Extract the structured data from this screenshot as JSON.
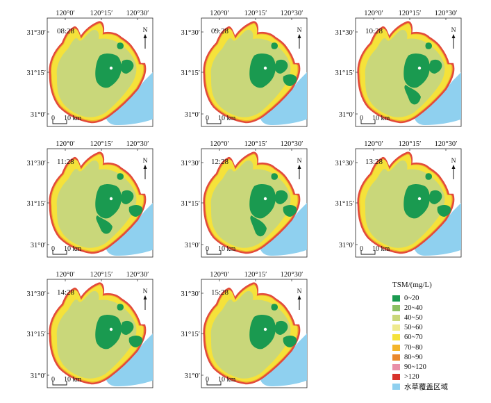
{
  "panels": [
    {
      "time": "08:28",
      "lon_labels": [
        "120°0′",
        "120°15′",
        "120°30′"
      ],
      "lat_labels": [
        "31°30′",
        "31°15′",
        "31°0′"
      ],
      "scale_label": "10 km",
      "scale_zero": "0",
      "north": "N"
    },
    {
      "time": "09:28",
      "lon_labels": [
        "120°0′",
        "120°15′",
        "120°30′"
      ],
      "lat_labels": [
        "31°30′",
        "31°15′",
        "31°0′"
      ],
      "scale_label": "10 km",
      "scale_zero": "0",
      "north": "N"
    },
    {
      "time": "10:28",
      "lon_labels": [
        "120°0′",
        "120°15′",
        "120°30′"
      ],
      "lat_labels": [
        "31°30′",
        "31°15′",
        "31°0′"
      ],
      "scale_label": "10 km",
      "scale_zero": "0",
      "north": "N"
    },
    {
      "time": "11:28",
      "lon_labels": [
        "120°0′",
        "120°15′",
        "120°30′"
      ],
      "lat_labels": [
        "31°30′",
        "31°15′",
        "31°0′"
      ],
      "scale_label": "10 km",
      "scale_zero": "0",
      "north": "N"
    },
    {
      "time": "12:28",
      "lon_labels": [
        "120°0′",
        "120°15′",
        "120°30′"
      ],
      "lat_labels": [
        "31°30′",
        "31°15′",
        "31°0′"
      ],
      "scale_label": "10 km",
      "scale_zero": "0",
      "north": "N"
    },
    {
      "time": "13:28",
      "lon_labels": [
        "120°0′",
        "120°15′",
        "120°30′"
      ],
      "lat_labels": [
        "31°30′",
        "31°15′",
        "31°0′"
      ],
      "scale_label": "10 km",
      "scale_zero": "0",
      "north": "N"
    },
    {
      "time": "14:28",
      "lon_labels": [
        "120°0′",
        "120°15′",
        "120°30′"
      ],
      "lat_labels": [
        "31°30′",
        "31°15′",
        "31°0′"
      ],
      "scale_label": "10 km",
      "scale_zero": "0",
      "north": "N"
    },
    {
      "time": "15:28",
      "lon_labels": [
        "120°0′",
        "120°15′",
        "120°30′"
      ],
      "lat_labels": [
        "31°30′",
        "31°15′",
        "31°0′"
      ],
      "scale_label": "10 km",
      "scale_zero": "0",
      "north": "N"
    }
  ],
  "legend": {
    "title": "TSM/(mg/L)",
    "items": [
      {
        "label": "0~20",
        "color": "#1a9a50"
      },
      {
        "label": "20~40",
        "color": "#8cc063"
      },
      {
        "label": "40~50",
        "color": "#c9d77a"
      },
      {
        "label": "50~60",
        "color": "#efea8e"
      },
      {
        "label": "60~70",
        "color": "#f5e23a"
      },
      {
        "label": "70~80",
        "color": "#f3b52a"
      },
      {
        "label": "80~90",
        "color": "#e9882d"
      },
      {
        "label": "90~120",
        "color": "#e98fa8"
      },
      {
        "label": ">120",
        "color": "#d8322b"
      },
      {
        "label": "水草覆盖区域",
        "color": "#8fd0ef"
      }
    ]
  },
  "colors": {
    "water_plant": "#8fd0ef",
    "edge_red": "#e24a3b",
    "edge_orange": "#f3b52a",
    "margin_yellow": "#f5e23a",
    "main_olive": "#c9d77a",
    "green": "#1a9a50"
  }
}
